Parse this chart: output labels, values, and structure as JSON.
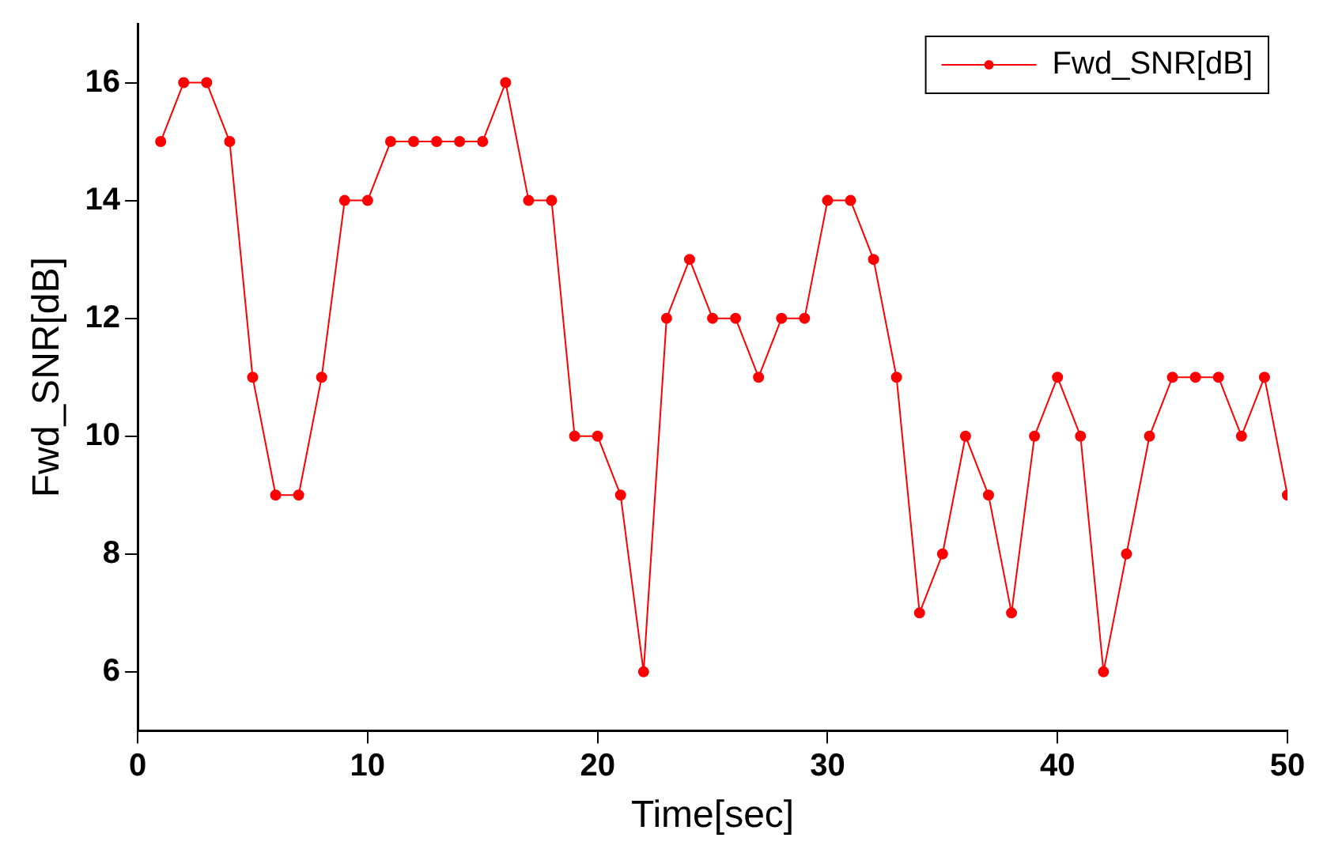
{
  "chart_data": {
    "type": "line",
    "xlabel": "Time[sec]",
    "ylabel": "Fwd_SNR[dB]",
    "x": [
      1,
      2,
      3,
      4,
      5,
      6,
      7,
      8,
      9,
      10,
      11,
      12,
      13,
      14,
      15,
      16,
      17,
      18,
      19,
      20,
      21,
      22,
      23,
      24,
      25,
      26,
      27,
      28,
      29,
      30,
      31,
      32,
      33,
      34,
      35,
      36,
      37,
      38,
      39,
      40,
      41,
      42,
      43,
      44,
      45,
      46,
      47,
      48,
      49,
      50
    ],
    "series": [
      {
        "name": "Fwd_SNR[dB]",
        "color": "#ff0000",
        "values": [
          15,
          16,
          16,
          15,
          11,
          9,
          9,
          11,
          14,
          14,
          15,
          15,
          15,
          15,
          15,
          16,
          14,
          14,
          10,
          10,
          9,
          6,
          12,
          13,
          12,
          12,
          11,
          12,
          12,
          14,
          14,
          13,
          11,
          7,
          8,
          10,
          9,
          7,
          10,
          11,
          10,
          6,
          8,
          10,
          11,
          11,
          11,
          10,
          11,
          9
        ]
      }
    ],
    "xlim": [
      0,
      50
    ],
    "xticks": [
      0,
      10,
      20,
      30,
      40,
      50
    ],
    "ylim": [
      5,
      17
    ],
    "yticks": [
      6,
      8,
      10,
      12,
      14,
      16
    ],
    "grid": false,
    "legend": "top right",
    "marker": "circle",
    "line_style": "solid"
  }
}
